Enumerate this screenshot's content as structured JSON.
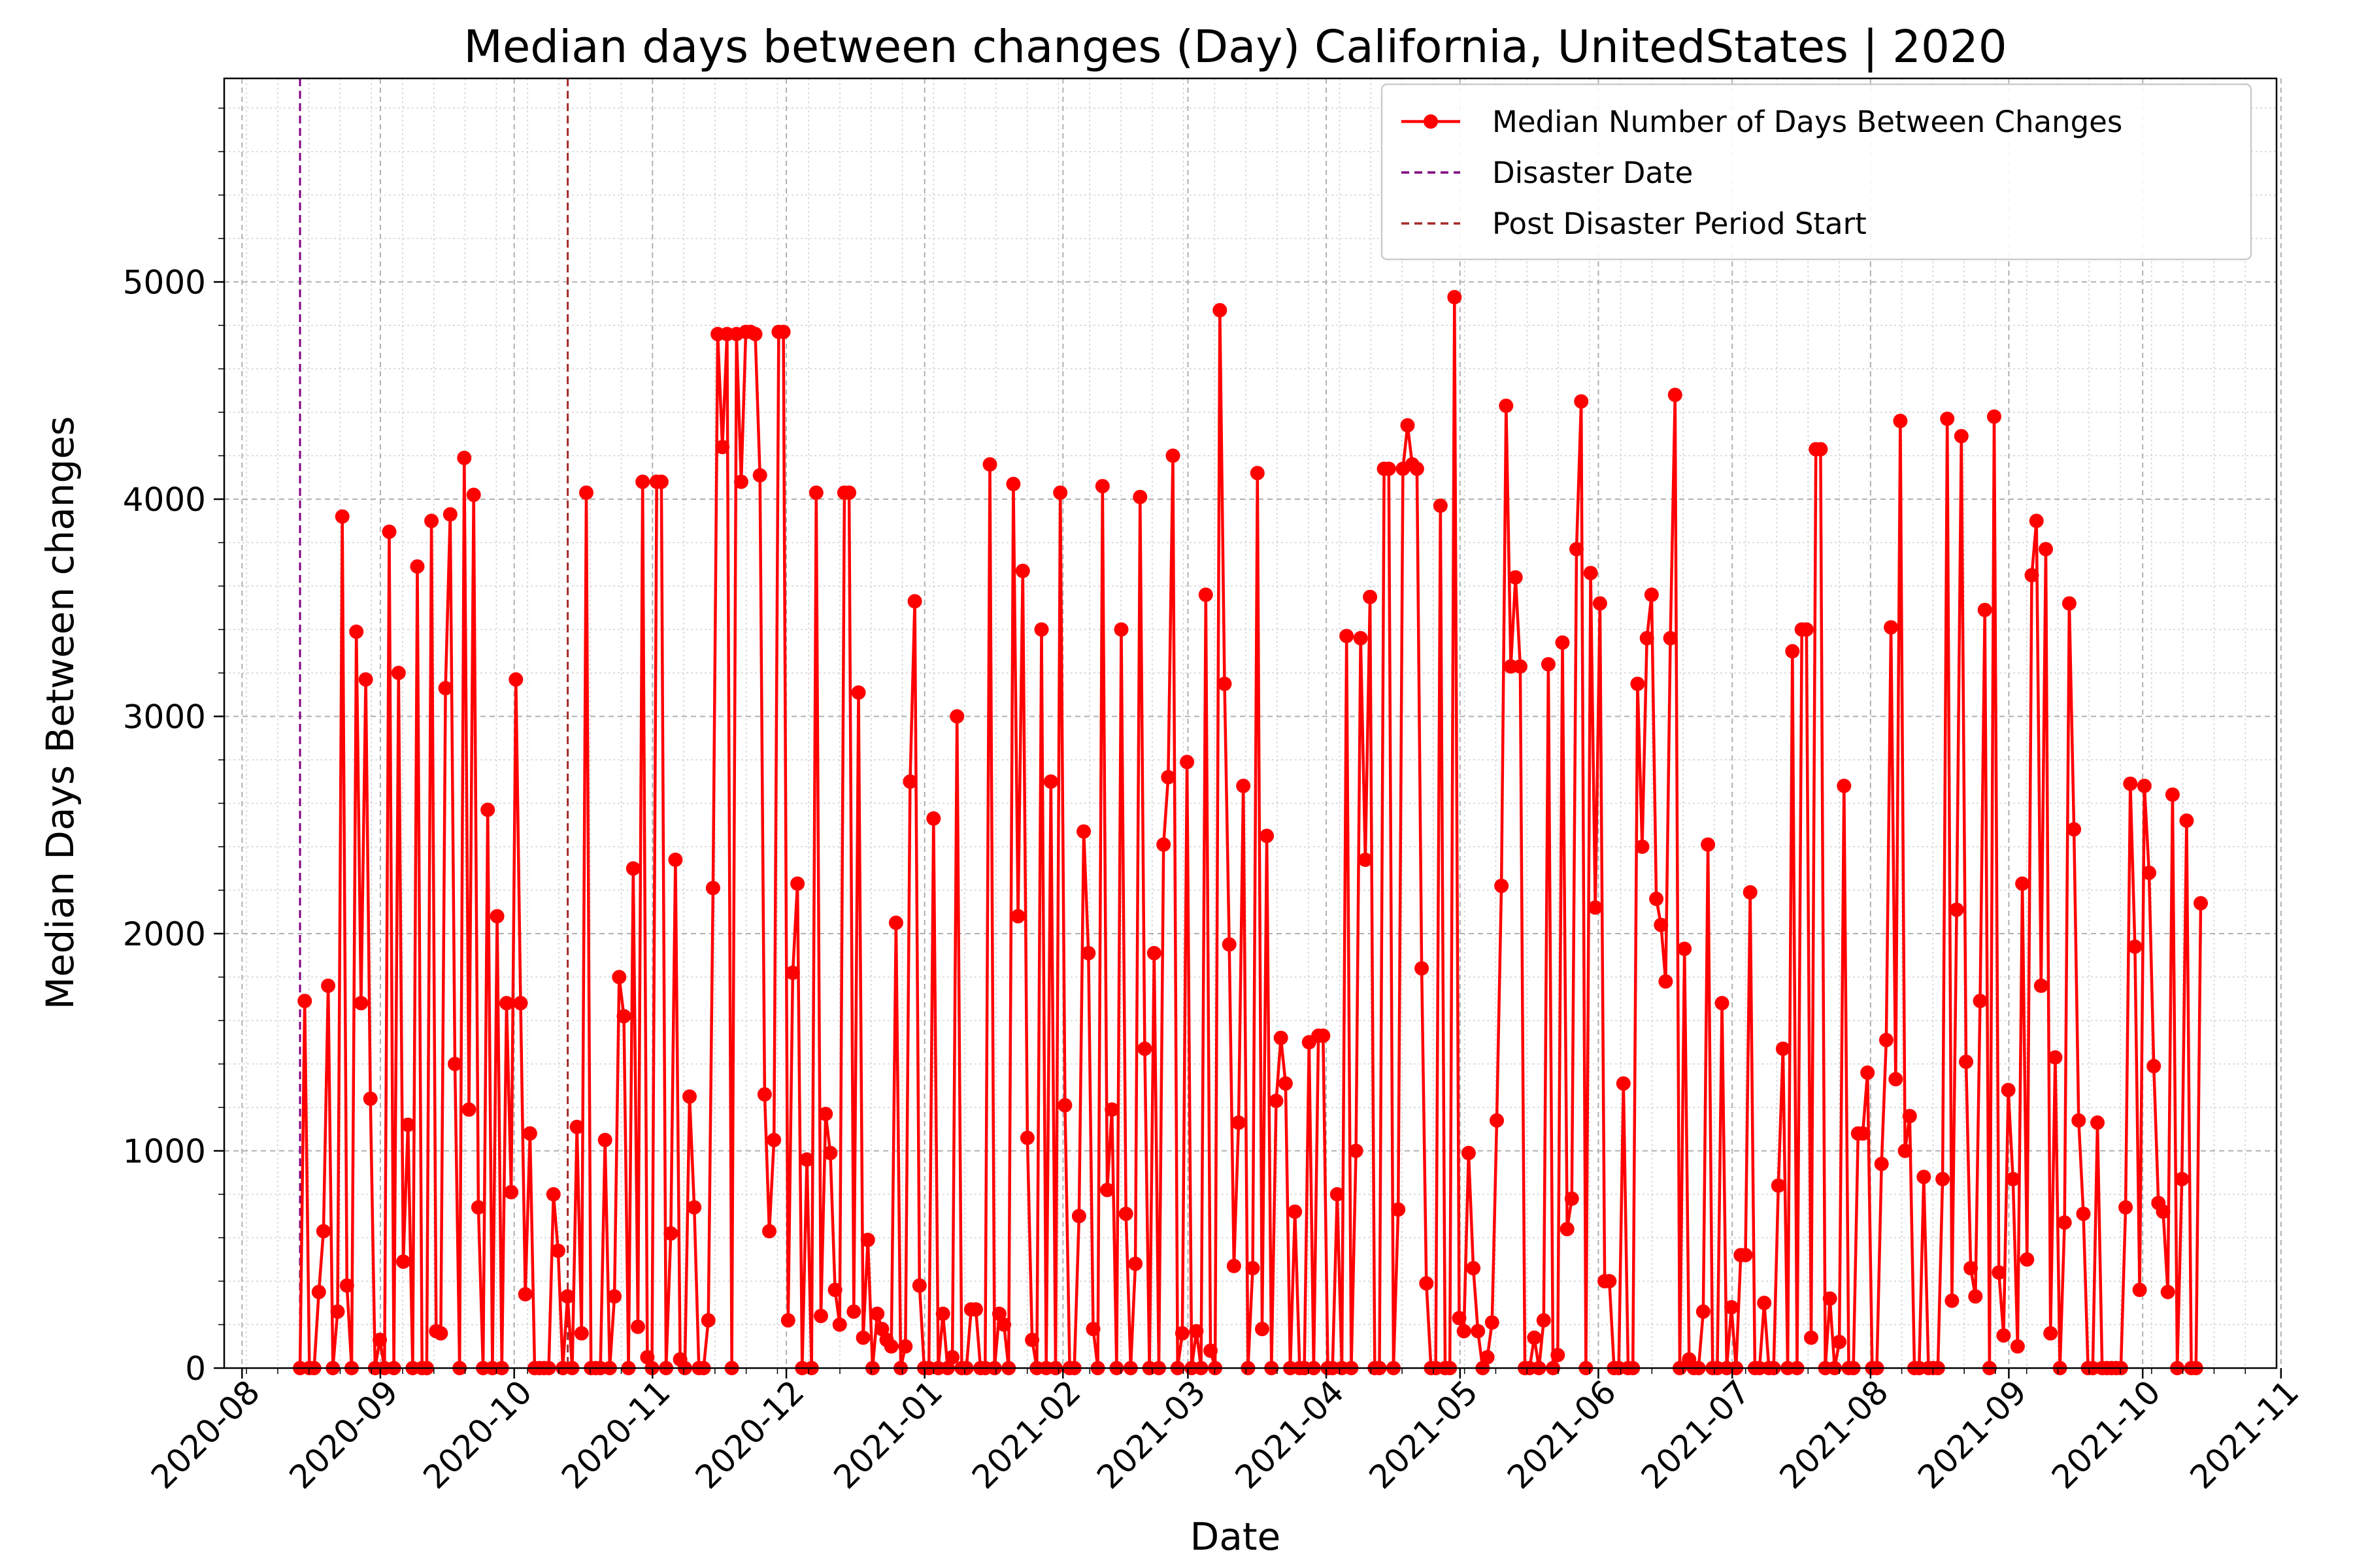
{
  "chart_data": {
    "type": "line",
    "title": "Median days between changes (Day) California, UnitedStates | 2020",
    "xlabel": "Date",
    "ylabel": "Median Days Between changes",
    "x_start": "2020-08-14",
    "x_end": "2021-10-14",
    "xlim": [
      "2020-07-28",
      "2021-10-31"
    ],
    "ylim": [
      0,
      5937
    ],
    "x_ticks": [
      "2020-08",
      "2020-09",
      "2020-10",
      "2020-11",
      "2020-12",
      "2021-01",
      "2021-02",
      "2021-03",
      "2021-04",
      "2021-05",
      "2021-06",
      "2021-07",
      "2021-08",
      "2021-09",
      "2021-10",
      "2021-11"
    ],
    "y_ticks": [
      0,
      1000,
      2000,
      3000,
      4000,
      5000
    ],
    "grid": true,
    "legend_position": "top-right",
    "series": [
      {
        "name": "Median Number of Days Between Changes",
        "color": "#ff0000",
        "marker": "circle",
        "y": [
          0,
          1690,
          0,
          0,
          350,
          630,
          1760,
          0,
          260,
          3920,
          380,
          0,
          3390,
          1680,
          3170,
          1240,
          0,
          130,
          0,
          3850,
          0,
          3200,
          490,
          1120,
          0,
          3690,
          0,
          0,
          3900,
          170,
          160,
          3130,
          3930,
          1400,
          0,
          4190,
          1190,
          4020,
          740,
          0,
          2570,
          0,
          2080,
          0,
          1680,
          810,
          3170,
          1680,
          340,
          1080,
          0,
          0,
          0,
          0,
          800,
          540,
          0,
          330,
          0,
          1110,
          160,
          4030,
          0,
          0,
          0,
          1050,
          0,
          330,
          1800,
          1620,
          0,
          2300,
          190,
          4080,
          50,
          0,
          4080,
          4080,
          0,
          620,
          2340,
          40,
          0,
          1250,
          740,
          0,
          0,
          220,
          2210,
          4760,
          4240,
          4760,
          0,
          4760,
          4080,
          4770,
          4770,
          4760,
          4110,
          1260,
          630,
          1050,
          4770,
          4770,
          220,
          1820,
          2230,
          0,
          960,
          0,
          4030,
          240,
          1170,
          990,
          360,
          200,
          4030,
          4030,
          260,
          3110,
          140,
          590,
          0,
          250,
          180,
          130,
          100,
          2050,
          0,
          100,
          2700,
          3530,
          380,
          0,
          0,
          2530,
          0,
          250,
          0,
          50,
          3000,
          0,
          0,
          270,
          270,
          0,
          0,
          4160,
          0,
          250,
          200,
          0,
          4070,
          2080,
          3670,
          1060,
          130,
          0,
          3400,
          0,
          2700,
          0,
          4030,
          1210,
          0,
          0,
          700,
          2470,
          1910,
          180,
          0,
          4060,
          820,
          1190,
          0,
          3400,
          710,
          0,
          480,
          4010,
          1470,
          0,
          1910,
          0,
          2410,
          2720,
          4200,
          0,
          160,
          2790,
          0,
          170,
          0,
          3560,
          80,
          0,
          4870,
          3150,
          1950,
          470,
          1130,
          2680,
          0,
          460,
          4120,
          180,
          2450,
          0,
          1230,
          1520,
          1310,
          0,
          720,
          0,
          0,
          1500,
          0,
          1530,
          1530,
          0,
          0,
          800,
          0,
          3370,
          0,
          1000,
          3360,
          2340,
          3550,
          0,
          0,
          4140,
          4140,
          0,
          730,
          4140,
          4340,
          4160,
          4140,
          1840,
          390,
          0,
          0,
          3970,
          0,
          0,
          4930,
          230,
          170,
          990,
          460,
          170,
          0,
          50,
          210,
          1140,
          2220,
          4430,
          3230,
          3640,
          3230,
          0,
          0,
          140,
          0,
          220,
          3240,
          0,
          60,
          3340,
          640,
          780,
          3770,
          4450,
          0,
          3660,
          2120,
          3520,
          400,
          400,
          0,
          0,
          1310,
          0,
          0,
          3150,
          2400,
          3360,
          3560,
          2160,
          2040,
          1780,
          3360,
          4480,
          0,
          1930,
          40,
          0,
          0,
          260,
          2410,
          0,
          0,
          1680,
          0,
          280,
          0,
          520,
          520,
          2190,
          0,
          0,
          300,
          0,
          0,
          840,
          1470,
          0,
          3300,
          0,
          3400,
          3400,
          140,
          4230,
          4230,
          0,
          320,
          0,
          120,
          2680,
          0,
          0,
          1080,
          1080,
          1360,
          0,
          0,
          940,
          1510,
          3410,
          1330,
          4360,
          1000,
          1160,
          0,
          0,
          880,
          0,
          0,
          0,
          870,
          4370,
          310,
          2110,
          4290,
          1410,
          460,
          330,
          1690,
          3490,
          0,
          4380,
          440,
          150,
          1280,
          870,
          100,
          2230,
          500,
          3650,
          3900,
          1760,
          3770,
          160,
          1430,
          0,
          670,
          3520,
          2480,
          1140,
          710,
          0,
          0,
          1130,
          0,
          0,
          0,
          0,
          0,
          740,
          2690,
          1940,
          360,
          2680,
          2280,
          1390,
          760,
          720,
          350,
          2640,
          0,
          870,
          2520,
          0,
          0,
          2140
        ]
      },
      {
        "name": "Disaster Date",
        "date": "2020-08-14",
        "color": "#800080",
        "style": "dashed"
      },
      {
        "name": "Post Disaster Period Start",
        "date": "2020-10-13",
        "color": "#a52a2a",
        "style": "dashed"
      }
    ]
  }
}
